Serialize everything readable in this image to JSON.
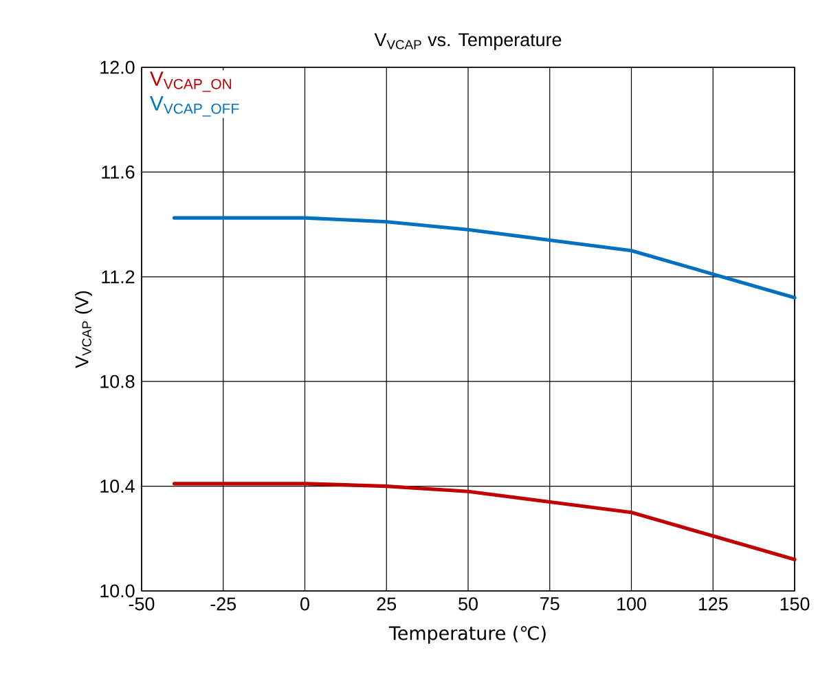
{
  "chart_data": {
    "type": "line",
    "title": "V$_{VCAP}$ vs. Temperature",
    "xlabel": "Temperature (℃)",
    "ylabel": "V$_{VCAP}$ (V)",
    "x": [
      -40,
      -25,
      0,
      25,
      50,
      75,
      100,
      125,
      150
    ],
    "series": [
      {
        "name": "V$_{VCAP_ON}$",
        "color": "#c00000",
        "values": [
          10.41,
          10.41,
          10.41,
          10.4,
          10.38,
          10.34,
          10.3,
          10.21,
          10.12
        ]
      },
      {
        "name": "V$_{VCAP_OFF}$",
        "color": "#0070c0",
        "values": [
          11.425,
          11.425,
          11.425,
          11.41,
          11.38,
          11.34,
          11.3,
          11.21,
          11.12
        ]
      }
    ],
    "xlim": [
      -50,
      150
    ],
    "ylim": [
      10,
      12
    ],
    "xticks": [
      -50,
      -25,
      0,
      25,
      50,
      75,
      100,
      125,
      150
    ],
    "yticks": [
      {
        "value": 10,
        "label": "10.0"
      },
      10.4,
      10.8,
      11.2,
      11.6,
      {
        "value": 12,
        "label": "12.0"
      }
    ],
    "grid": true,
    "legend": "top left",
    "marker": "none",
    "line_style": "solid"
  }
}
